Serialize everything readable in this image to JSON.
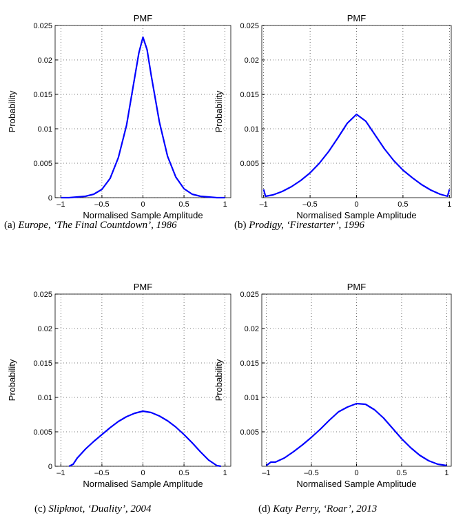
{
  "chart_data": [
    {
      "type": "line",
      "title": "PMF",
      "x_label": "Normalised Sample Amplitude",
      "y_label": "Probability",
      "caption_label": "(a)",
      "caption": "Europe, ‘The Final Countdown’, 1986",
      "color": "#0000ff",
      "grid": true,
      "xlim": [
        -1.07,
        1.07
      ],
      "ylim": [
        0,
        0.025
      ],
      "xticks": [
        {
          "value": -1,
          "label": "–1"
        },
        {
          "value": -0.5,
          "label": "–0.5"
        },
        0,
        0.5,
        1
      ],
      "yticks": [
        0,
        0.005,
        0.01,
        0.015,
        0.02,
        0.025
      ],
      "x": [
        -1,
        -0.9,
        -0.8,
        -0.7,
        -0.6,
        -0.5,
        -0.4,
        -0.3,
        -0.2,
        -0.1,
        -0.05,
        0,
        0.05,
        0.1,
        0.2,
        0.3,
        0.4,
        0.5,
        0.6,
        0.7,
        0.8,
        0.9,
        1
      ],
      "values": [
        0,
        0,
        0.0001,
        0.0002,
        0.0005,
        0.0012,
        0.0028,
        0.0058,
        0.0105,
        0.0175,
        0.021,
        0.0233,
        0.0215,
        0.0178,
        0.011,
        0.006,
        0.003,
        0.0013,
        0.0005,
        0.0002,
        0.0001,
        0,
        0
      ]
    },
    {
      "type": "line",
      "title": "PMF",
      "x_label": "Normalised Sample Amplitude",
      "y_label": "Probability",
      "caption_label": "(b)",
      "caption": "Prodigy, ‘Firestarter’, 1996",
      "color": "#0000ff",
      "grid": true,
      "xlim": [
        -1.02,
        1.02
      ],
      "ylim": [
        0,
        0.025
      ],
      "xticks": [
        {
          "value": -1,
          "label": "–1"
        },
        {
          "value": -0.5,
          "label": "–0.5"
        },
        0,
        0.5,
        1
      ],
      "yticks": [
        0.005,
        0.01,
        0.015,
        0.02,
        0.025
      ],
      "x": [
        -1,
        -0.98,
        -0.9,
        -0.8,
        -0.7,
        -0.6,
        -0.5,
        -0.4,
        -0.3,
        -0.2,
        -0.1,
        0,
        0.1,
        0.2,
        0.3,
        0.4,
        0.5,
        0.6,
        0.7,
        0.8,
        0.9,
        0.98,
        1
      ],
      "values": [
        0.0012,
        0.0002,
        0.0004,
        0.0009,
        0.0016,
        0.0025,
        0.0036,
        0.005,
        0.0067,
        0.0087,
        0.0108,
        0.0121,
        0.0111,
        0.0091,
        0.0071,
        0.0054,
        0.004,
        0.0029,
        0.0019,
        0.0011,
        0.0005,
        0.0002,
        0.0012
      ]
    },
    {
      "type": "line",
      "title": "PMF",
      "x_label": "Normalised Sample Amplitude",
      "y_label": "Probability",
      "caption_label": "(c)",
      "caption": "Slipknot, ‘Duality’, 2004",
      "color": "#0000ff",
      "grid": true,
      "xlim": [
        -1.07,
        1.07
      ],
      "ylim": [
        0,
        0.025
      ],
      "xticks": [
        {
          "value": -1,
          "label": "–1"
        },
        {
          "value": -0.5,
          "label": "–0.5"
        },
        0,
        0.5,
        1
      ],
      "yticks": [
        0,
        0.005,
        0.01,
        0.015,
        0.02,
        0.025
      ],
      "x": [
        -0.9,
        -0.85,
        -0.8,
        -0.7,
        -0.6,
        -0.5,
        -0.4,
        -0.3,
        -0.2,
        -0.1,
        0,
        0.1,
        0.2,
        0.3,
        0.4,
        0.5,
        0.6,
        0.7,
        0.8,
        0.9,
        0.95
      ],
      "values": [
        0,
        0.0003,
        0.0012,
        0.0025,
        0.0036,
        0.0046,
        0.0056,
        0.0065,
        0.0072,
        0.0077,
        0.008,
        0.0078,
        0.0073,
        0.0066,
        0.0057,
        0.0046,
        0.0034,
        0.0021,
        0.0009,
        0.0001,
        0
      ]
    },
    {
      "type": "line",
      "title": "PMF",
      "x_label": "Normalised Sample Amplitude",
      "y_label": "Probability",
      "caption_label": "(d)",
      "caption": "Katy Perry, ‘Roar’, 2013",
      "color": "#0000ff",
      "grid": true,
      "xlim": [
        -1.05,
        1.05
      ],
      "ylim": [
        0,
        0.025
      ],
      "xticks": [
        {
          "value": -1,
          "label": "–1"
        },
        {
          "value": -0.5,
          "label": "–0.5"
        },
        0,
        0.5,
        1
      ],
      "yticks": [
        0.005,
        0.01,
        0.015,
        0.02,
        0.025
      ],
      "x": [
        -1,
        -0.95,
        -0.9,
        -0.8,
        -0.7,
        -0.6,
        -0.5,
        -0.4,
        -0.3,
        -0.2,
        -0.1,
        0,
        0.1,
        0.2,
        0.3,
        0.4,
        0.5,
        0.6,
        0.7,
        0.8,
        0.9,
        1
      ],
      "values": [
        0.0001,
        0.0006,
        0.0006,
        0.0012,
        0.0021,
        0.0031,
        0.0042,
        0.0054,
        0.0067,
        0.0079,
        0.0086,
        0.0091,
        0.009,
        0.0082,
        0.007,
        0.0055,
        0.004,
        0.0027,
        0.0016,
        0.0008,
        0.0003,
        0.0001
      ]
    }
  ]
}
